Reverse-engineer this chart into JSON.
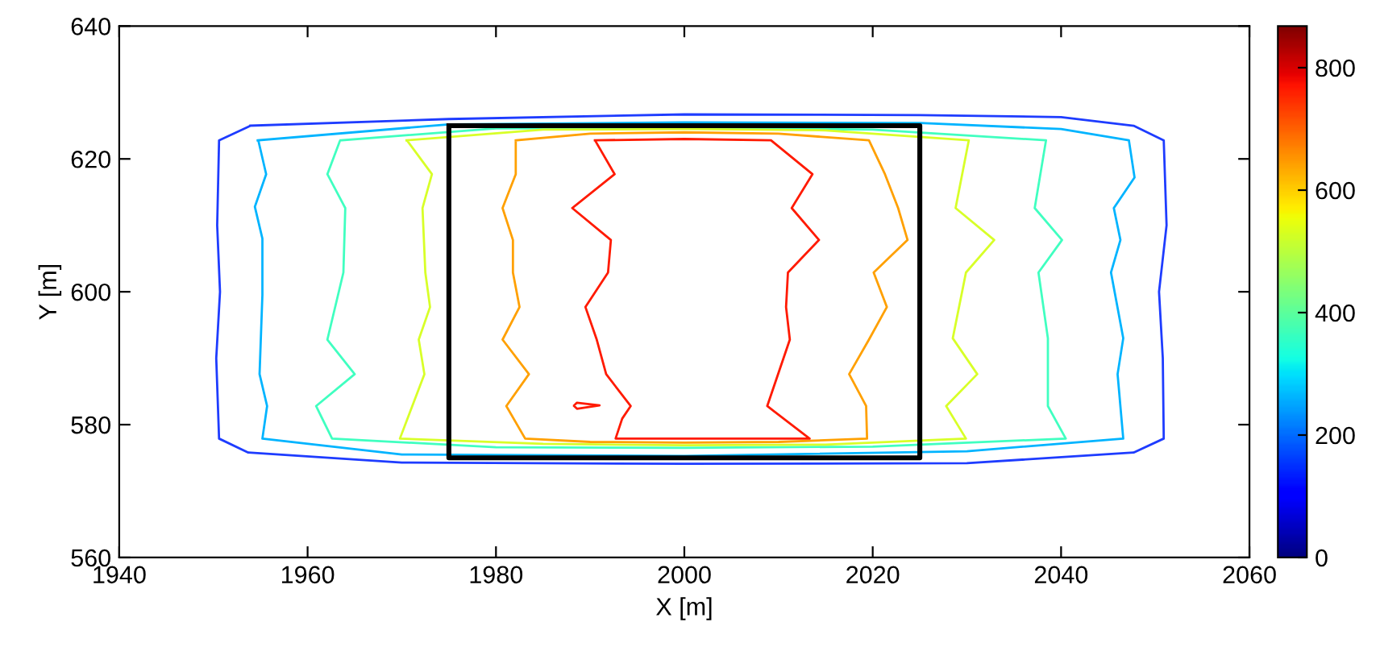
{
  "chart_data": {
    "type": "line",
    "xlabel": "X [m]",
    "ylabel": "Y [m]",
    "xlim": [
      1940,
      2060
    ],
    "ylim": [
      560,
      640
    ],
    "xticks": [
      1940,
      1960,
      1980,
      2000,
      2020,
      2040,
      2060
    ],
    "yticks": [
      560,
      580,
      600,
      620,
      640
    ],
    "clim": [
      0,
      868
    ],
    "cticks": [
      0,
      200,
      400,
      600,
      800
    ],
    "grid": false,
    "legend": false,
    "marker": "none",
    "line_style": "solid",
    "series": [
      {
        "color": "#1e3cff",
        "x": [
          1953.9,
          1975,
          2000,
          2025,
          2040,
          2047.7,
          2050.9,
          2051.2,
          2050.4,
          2050.8,
          2050.9,
          2047.7,
          2030,
          2000,
          1970,
          1953.7,
          1950.6,
          1950.3,
          1950.7,
          1950.4,
          1950.6,
          1953.8
        ],
        "values": [
          625.0,
          626.0,
          626.7,
          626.6,
          626.3,
          625.0,
          622.8,
          610,
          600,
          590,
          577.9,
          575.8,
          574.2,
          574.1,
          574.3,
          575.8,
          577.9,
          590,
          600,
          610,
          622.8,
          624.9
        ]
      },
      {
        "color": "#00b4ff",
        "x": [
          1954.7,
          1975,
          2000,
          2025,
          2040,
          2047.2,
          2047.8,
          2045.6,
          2046.3,
          2045.3,
          2046.6,
          2046.0,
          2046.6,
          2030,
          2000,
          1970,
          1955.2,
          1955.7,
          1954.9,
          1955.2,
          1955.2,
          1954.4,
          1955.6,
          1954.8
        ],
        "values": [
          622.8,
          625.2,
          625.5,
          625.4,
          624.5,
          622.8,
          617.2,
          612.6,
          607.8,
          602.9,
          593.0,
          587.6,
          577.9,
          576.0,
          575.3,
          575.5,
          577.9,
          582.8,
          587.6,
          599.5,
          608.0,
          612.8,
          617.7,
          622.6
        ]
      },
      {
        "color": "#40ffc0",
        "x": [
          1963.5,
          1980,
          2000,
          2020,
          2038.4,
          2037.2,
          2040.1,
          2037.6,
          2038.6,
          2038.6,
          2040.5,
          2020,
          2000,
          1980,
          1962.6,
          1960.9,
          1965.0,
          1962.1,
          1963.8,
          1964.0,
          1962.1,
          1963.4
        ],
        "values": [
          622.8,
          624.6,
          624.7,
          624.4,
          622.8,
          612.6,
          607.8,
          602.9,
          593.0,
          582.8,
          577.9,
          576.7,
          576.5,
          576.6,
          577.9,
          582.8,
          587.6,
          592.8,
          602.9,
          612.6,
          617.7,
          622.6
        ]
      },
      {
        "color": "#d8ff28",
        "x": [
          1970.5,
          1985,
          2000,
          2015,
          2030.2,
          2028.8,
          2032.9,
          2029.9,
          2028.5,
          2031.1,
          2027.8,
          2029.9,
          2015,
          2000,
          1985,
          1969.8,
          1972.4,
          1971.8,
          1973.0,
          1972.5,
          1972.2,
          1973.2,
          1970.6
        ],
        "values": [
          622.8,
          624.4,
          624.5,
          624.3,
          622.8,
          612.6,
          607.8,
          602.9,
          593.0,
          587.6,
          582.8,
          577.9,
          577.0,
          576.9,
          577.1,
          577.9,
          587.6,
          592.8,
          597.7,
          602.9,
          612.6,
          617.7,
          622.7
        ]
      },
      {
        "color": "#ffa000",
        "x": [
          1982.1,
          1990,
          2000,
          2010,
          2019.6,
          2021.3,
          2022.7,
          2023.7,
          2020.1,
          2021.5,
          2019.6,
          2017.5,
          2019.3,
          2019.4,
          2010,
          2000,
          1990,
          1983.1,
          1981.1,
          1983.5,
          1980.7,
          1982.5,
          1981.8,
          1981.8,
          1980.7,
          1982.1,
          1982.1
        ],
        "values": [
          622.8,
          623.8,
          624.0,
          623.8,
          622.8,
          617.7,
          612.6,
          607.8,
          602.9,
          597.7,
          592.8,
          587.6,
          582.8,
          577.9,
          577.4,
          577.3,
          577.4,
          577.9,
          582.8,
          587.6,
          592.8,
          597.7,
          602.9,
          607.8,
          612.6,
          617.7,
          622.6
        ]
      },
      {
        "color": "#ff1a00",
        "x": [
          1990.5,
          2000,
          2009.2,
          2013.6,
          2011.4,
          2014.3,
          2011.0,
          2010.8,
          2011.2,
          2008.8,
          2013.3,
          2000,
          1992.7,
          1993.4,
          1994.3,
          1991.7,
          1990.7,
          1989.5,
          1991.9,
          1992.2,
          1988.1,
          1992.6,
          1990.6
        ],
        "values": [
          622.8,
          623.0,
          622.8,
          617.7,
          612.6,
          607.8,
          602.9,
          597.7,
          592.8,
          582.8,
          577.9,
          577.9,
          577.9,
          580.9,
          582.8,
          587.6,
          592.8,
          597.7,
          602.9,
          607.8,
          612.6,
          617.7,
          622.6
        ]
      },
      {
        "color": "#ff1a00",
        "x": [
          1988.3,
          1988.6,
          1991.0,
          1988.6,
          1988.3
        ],
        "values": [
          582.9,
          583.3,
          582.9,
          582.4,
          582.8
        ]
      },
      {
        "color": "#000000",
        "x": [
          1975,
          2025,
          2025,
          1975,
          1975
        ],
        "values": [
          625,
          625,
          575,
          575,
          624.9
        ]
      }
    ]
  }
}
